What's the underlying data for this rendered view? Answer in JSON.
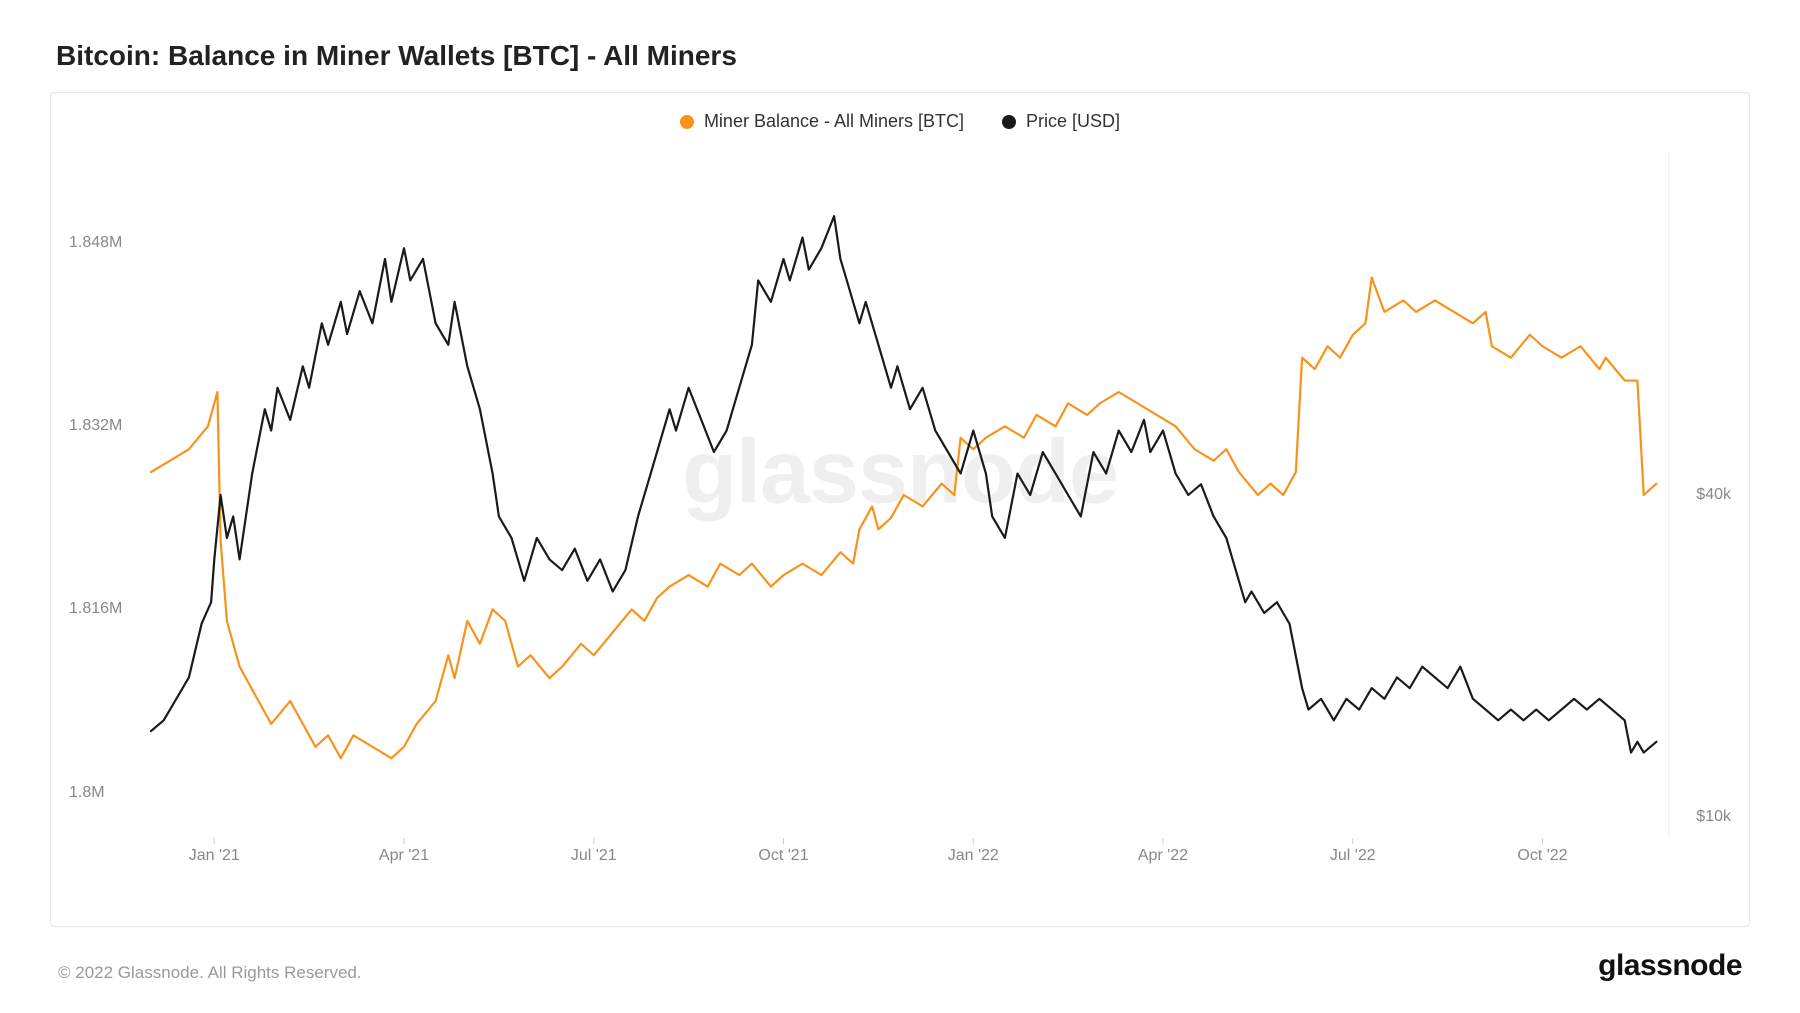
{
  "title": "Bitcoin: Balance in Miner Wallets [BTC] - All Miners",
  "watermark": "glassnode",
  "copyright": "© 2022 Glassnode. All Rights Reserved.",
  "brand": "glassnode",
  "chart": {
    "type": "line_dual_axis",
    "background_color": "#ffffff",
    "border_color": "#e5e5e5",
    "title_fontsize": 28,
    "tick_fontsize": 16,
    "tick_color": "#888888",
    "watermark_fontsize": 90,
    "watermark_opacity": 0.06,
    "legend_fontsize": 18,
    "legend_position": "top-center",
    "line_width": 2.2,
    "x": {
      "domain": [
        0,
        24
      ],
      "ticks": [
        {
          "pos": 1,
          "label": "Jan '21"
        },
        {
          "pos": 4,
          "label": "Apr '21"
        },
        {
          "pos": 7,
          "label": "Jul '21"
        },
        {
          "pos": 10,
          "label": "Oct '21"
        },
        {
          "pos": 13,
          "label": "Jan '22"
        },
        {
          "pos": 16,
          "label": "Apr '22"
        },
        {
          "pos": 19,
          "label": "Jul '22"
        },
        {
          "pos": 22,
          "label": "Oct '22"
        }
      ]
    },
    "y_left": {
      "domain": [
        1.796,
        1.856
      ],
      "ticks": [
        {
          "val": 1.8,
          "label": "1.8M"
        },
        {
          "val": 1.816,
          "label": "1.816M"
        },
        {
          "val": 1.832,
          "label": "1.832M"
        },
        {
          "val": 1.848,
          "label": "1.848M"
        }
      ]
    },
    "y_right": {
      "domain": [
        8,
        72
      ],
      "ticks": [
        {
          "val": 10,
          "label": "$10k"
        },
        {
          "val": 40,
          "label": "$40k"
        }
      ]
    },
    "series": [
      {
        "name": "Miner Balance - All Miners [BTC]",
        "color": "#f7931a",
        "axis": "left",
        "data": [
          [
            0.0,
            1.828
          ],
          [
            0.3,
            1.829
          ],
          [
            0.6,
            1.83
          ],
          [
            0.9,
            1.832
          ],
          [
            1.0,
            1.834
          ],
          [
            1.05,
            1.835
          ],
          [
            1.1,
            1.822
          ],
          [
            1.2,
            1.815
          ],
          [
            1.4,
            1.811
          ],
          [
            1.6,
            1.809
          ],
          [
            1.9,
            1.806
          ],
          [
            2.2,
            1.808
          ],
          [
            2.4,
            1.806
          ],
          [
            2.6,
            1.804
          ],
          [
            2.8,
            1.805
          ],
          [
            3.0,
            1.803
          ],
          [
            3.2,
            1.805
          ],
          [
            3.5,
            1.804
          ],
          [
            3.8,
            1.803
          ],
          [
            4.0,
            1.804
          ],
          [
            4.2,
            1.806
          ],
          [
            4.5,
            1.808
          ],
          [
            4.7,
            1.812
          ],
          [
            4.8,
            1.81
          ],
          [
            5.0,
            1.815
          ],
          [
            5.2,
            1.813
          ],
          [
            5.4,
            1.816
          ],
          [
            5.6,
            1.815
          ],
          [
            5.8,
            1.811
          ],
          [
            6.0,
            1.812
          ],
          [
            6.3,
            1.81
          ],
          [
            6.5,
            1.811
          ],
          [
            6.8,
            1.813
          ],
          [
            7.0,
            1.812
          ],
          [
            7.3,
            1.814
          ],
          [
            7.6,
            1.816
          ],
          [
            7.8,
            1.815
          ],
          [
            8.0,
            1.817
          ],
          [
            8.2,
            1.818
          ],
          [
            8.5,
            1.819
          ],
          [
            8.8,
            1.818
          ],
          [
            9.0,
            1.82
          ],
          [
            9.3,
            1.819
          ],
          [
            9.5,
            1.82
          ],
          [
            9.8,
            1.818
          ],
          [
            10.0,
            1.819
          ],
          [
            10.3,
            1.82
          ],
          [
            10.6,
            1.819
          ],
          [
            10.9,
            1.821
          ],
          [
            11.1,
            1.82
          ],
          [
            11.2,
            1.823
          ],
          [
            11.4,
            1.825
          ],
          [
            11.5,
            1.823
          ],
          [
            11.7,
            1.824
          ],
          [
            11.9,
            1.826
          ],
          [
            12.2,
            1.825
          ],
          [
            12.5,
            1.827
          ],
          [
            12.7,
            1.826
          ],
          [
            12.8,
            1.831
          ],
          [
            13.0,
            1.83
          ],
          [
            13.2,
            1.831
          ],
          [
            13.5,
            1.832
          ],
          [
            13.8,
            1.831
          ],
          [
            14.0,
            1.833
          ],
          [
            14.3,
            1.832
          ],
          [
            14.5,
            1.834
          ],
          [
            14.8,
            1.833
          ],
          [
            15.0,
            1.834
          ],
          [
            15.3,
            1.835
          ],
          [
            15.6,
            1.834
          ],
          [
            15.9,
            1.833
          ],
          [
            16.2,
            1.832
          ],
          [
            16.5,
            1.83
          ],
          [
            16.8,
            1.829
          ],
          [
            17.0,
            1.83
          ],
          [
            17.2,
            1.828
          ],
          [
            17.5,
            1.826
          ],
          [
            17.7,
            1.827
          ],
          [
            17.9,
            1.826
          ],
          [
            18.1,
            1.828
          ],
          [
            18.2,
            1.838
          ],
          [
            18.4,
            1.837
          ],
          [
            18.6,
            1.839
          ],
          [
            18.8,
            1.838
          ],
          [
            19.0,
            1.84
          ],
          [
            19.2,
            1.841
          ],
          [
            19.3,
            1.845
          ],
          [
            19.5,
            1.842
          ],
          [
            19.8,
            1.843
          ],
          [
            20.0,
            1.842
          ],
          [
            20.3,
            1.843
          ],
          [
            20.6,
            1.842
          ],
          [
            20.9,
            1.841
          ],
          [
            21.1,
            1.842
          ],
          [
            21.2,
            1.839
          ],
          [
            21.5,
            1.838
          ],
          [
            21.8,
            1.84
          ],
          [
            22.0,
            1.839
          ],
          [
            22.3,
            1.838
          ],
          [
            22.6,
            1.839
          ],
          [
            22.9,
            1.837
          ],
          [
            23.0,
            1.838
          ],
          [
            23.3,
            1.836
          ],
          [
            23.5,
            1.836
          ],
          [
            23.6,
            1.826
          ],
          [
            23.8,
            1.827
          ]
        ]
      },
      {
        "name": "Price [USD]",
        "color": "#1a1a1a",
        "axis": "right",
        "data": [
          [
            0.0,
            18
          ],
          [
            0.2,
            19
          ],
          [
            0.4,
            21
          ],
          [
            0.6,
            23
          ],
          [
            0.8,
            28
          ],
          [
            0.95,
            30
          ],
          [
            1.0,
            34
          ],
          [
            1.1,
            40
          ],
          [
            1.2,
            36
          ],
          [
            1.3,
            38
          ],
          [
            1.4,
            34
          ],
          [
            1.6,
            42
          ],
          [
            1.8,
            48
          ],
          [
            1.9,
            46
          ],
          [
            2.0,
            50
          ],
          [
            2.2,
            47
          ],
          [
            2.4,
            52
          ],
          [
            2.5,
            50
          ],
          [
            2.7,
            56
          ],
          [
            2.8,
            54
          ],
          [
            3.0,
            58
          ],
          [
            3.1,
            55
          ],
          [
            3.3,
            59
          ],
          [
            3.5,
            56
          ],
          [
            3.7,
            62
          ],
          [
            3.8,
            58
          ],
          [
            4.0,
            63
          ],
          [
            4.1,
            60
          ],
          [
            4.3,
            62
          ],
          [
            4.5,
            56
          ],
          [
            4.7,
            54
          ],
          [
            4.8,
            58
          ],
          [
            5.0,
            52
          ],
          [
            5.2,
            48
          ],
          [
            5.4,
            42
          ],
          [
            5.5,
            38
          ],
          [
            5.7,
            36
          ],
          [
            5.9,
            32
          ],
          [
            6.1,
            36
          ],
          [
            6.3,
            34
          ],
          [
            6.5,
            33
          ],
          [
            6.7,
            35
          ],
          [
            6.9,
            32
          ],
          [
            7.1,
            34
          ],
          [
            7.3,
            31
          ],
          [
            7.5,
            33
          ],
          [
            7.7,
            38
          ],
          [
            7.9,
            42
          ],
          [
            8.0,
            44
          ],
          [
            8.2,
            48
          ],
          [
            8.3,
            46
          ],
          [
            8.5,
            50
          ],
          [
            8.7,
            47
          ],
          [
            8.9,
            44
          ],
          [
            9.1,
            46
          ],
          [
            9.3,
            50
          ],
          [
            9.5,
            54
          ],
          [
            9.6,
            60
          ],
          [
            9.8,
            58
          ],
          [
            10.0,
            62
          ],
          [
            10.1,
            60
          ],
          [
            10.3,
            64
          ],
          [
            10.4,
            61
          ],
          [
            10.6,
            63
          ],
          [
            10.8,
            66
          ],
          [
            10.9,
            62
          ],
          [
            11.0,
            60
          ],
          [
            11.2,
            56
          ],
          [
            11.3,
            58
          ],
          [
            11.5,
            54
          ],
          [
            11.7,
            50
          ],
          [
            11.8,
            52
          ],
          [
            12.0,
            48
          ],
          [
            12.2,
            50
          ],
          [
            12.4,
            46
          ],
          [
            12.6,
            44
          ],
          [
            12.8,
            42
          ],
          [
            13.0,
            46
          ],
          [
            13.2,
            42
          ],
          [
            13.3,
            38
          ],
          [
            13.5,
            36
          ],
          [
            13.7,
            42
          ],
          [
            13.9,
            40
          ],
          [
            14.1,
            44
          ],
          [
            14.3,
            42
          ],
          [
            14.5,
            40
          ],
          [
            14.7,
            38
          ],
          [
            14.9,
            44
          ],
          [
            15.1,
            42
          ],
          [
            15.3,
            46
          ],
          [
            15.5,
            44
          ],
          [
            15.7,
            47
          ],
          [
            15.8,
            44
          ],
          [
            16.0,
            46
          ],
          [
            16.2,
            42
          ],
          [
            16.4,
            40
          ],
          [
            16.6,
            41
          ],
          [
            16.8,
            38
          ],
          [
            17.0,
            36
          ],
          [
            17.2,
            32
          ],
          [
            17.3,
            30
          ],
          [
            17.4,
            31
          ],
          [
            17.6,
            29
          ],
          [
            17.8,
            30
          ],
          [
            18.0,
            28
          ],
          [
            18.2,
            22
          ],
          [
            18.3,
            20
          ],
          [
            18.5,
            21
          ],
          [
            18.7,
            19
          ],
          [
            18.9,
            21
          ],
          [
            19.1,
            20
          ],
          [
            19.3,
            22
          ],
          [
            19.5,
            21
          ],
          [
            19.7,
            23
          ],
          [
            19.9,
            22
          ],
          [
            20.1,
            24
          ],
          [
            20.3,
            23
          ],
          [
            20.5,
            22
          ],
          [
            20.7,
            24
          ],
          [
            20.9,
            21
          ],
          [
            21.1,
            20
          ],
          [
            21.3,
            19
          ],
          [
            21.5,
            20
          ],
          [
            21.7,
            19
          ],
          [
            21.9,
            20
          ],
          [
            22.1,
            19
          ],
          [
            22.3,
            20
          ],
          [
            22.5,
            21
          ],
          [
            22.7,
            20
          ],
          [
            22.9,
            21
          ],
          [
            23.1,
            20
          ],
          [
            23.3,
            19
          ],
          [
            23.4,
            16
          ],
          [
            23.5,
            17
          ],
          [
            23.6,
            16
          ],
          [
            23.8,
            17
          ]
        ]
      }
    ]
  }
}
